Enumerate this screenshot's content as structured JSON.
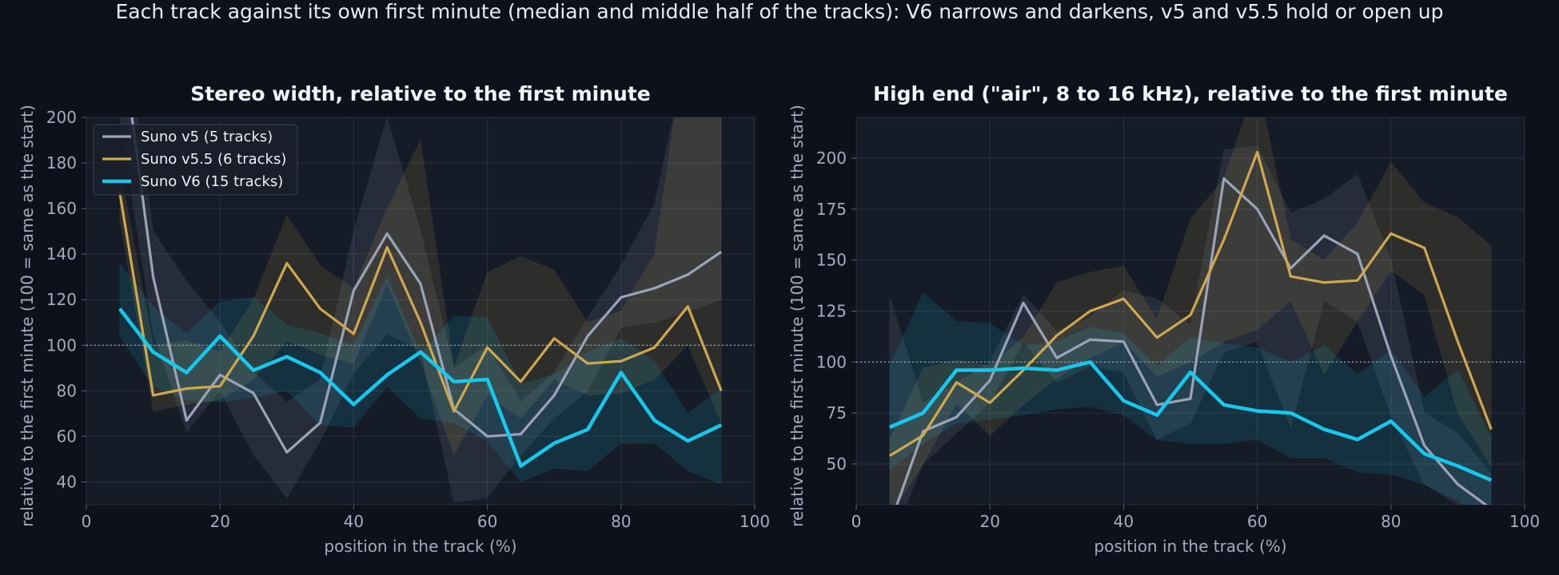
{
  "suptitle": "Each track against its own first minute (median and middle half of the tracks): V6 narrows and darkens, v5 and v5.5 hold or open up",
  "colors": {
    "background": "#0d111b",
    "panel": "#151b27",
    "grid": "#293040",
    "text": "#a4acbd",
    "v5": "#9ba3b8",
    "v55": "#cfa84e",
    "v6": "#16c8ec"
  },
  "chart_data": [
    {
      "type": "line",
      "title": "Stereo width, relative to the first minute",
      "xlabel": "position in the track (%)",
      "ylabel": "relative to the first minute (100 = same as the start)",
      "xlim": [
        0,
        100
      ],
      "ylim": [
        30,
        200
      ],
      "xticks": [
        0,
        20,
        40,
        60,
        80,
        100
      ],
      "yticks": [
        40,
        60,
        80,
        100,
        120,
        140,
        160,
        180,
        200
      ],
      "reference_line": 100,
      "grid": true,
      "legend": "top-left",
      "x": [
        5,
        10,
        15,
        20,
        25,
        30,
        35,
        40,
        45,
        50,
        55,
        60,
        65,
        70,
        75,
        80,
        85,
        90,
        95
      ],
      "series": [
        {
          "name": "Suno v5 (5 tracks)",
          "color_key": "v5",
          "median": [
            240,
            130,
            67,
            87,
            79,
            53,
            66,
            124,
            149,
            127,
            72,
            60,
            61,
            78,
            104,
            121,
            125,
            131,
            141
          ],
          "q1": [
            200,
            105,
            62,
            80,
            52,
            33,
            58,
            88,
            105,
            98,
            31,
            33,
            52,
            68,
            80,
            108,
            110,
            115,
            120
          ],
          "q3": [
            260,
            150,
            128,
            110,
            88,
            75,
            85,
            150,
            200,
            150,
            90,
            100,
            75,
            88,
            112,
            135,
            162,
            230,
            240
          ]
        },
        {
          "name": "Suno v5.5 (6 tracks)",
          "color_key": "v55",
          "median": [
            167,
            78,
            81,
            82,
            104,
            136,
            116,
            105,
            143,
            110,
            71,
            99,
            84,
            103,
            92,
            93,
            99,
            117,
            80
          ],
          "q1": [
            155,
            71,
            74,
            76,
            85,
            102,
            96,
            92,
            127,
            93,
            52,
            78,
            68,
            85,
            78,
            79,
            85,
            100,
            66
          ],
          "q3": [
            178,
            100,
            102,
            97,
            120,
            157,
            135,
            125,
            160,
            190,
            90,
            132,
            139,
            133,
            110,
            115,
            140,
            240,
            200
          ]
        },
        {
          "name": "Suno V6 (15 tracks)",
          "color_key": "v6",
          "median": [
            116,
            97,
            88,
            104,
            89,
            95,
            88,
            74,
            87,
            97,
            84,
            85,
            47,
            57,
            63,
            88,
            67,
            58,
            65
          ],
          "q1": [
            104,
            82,
            76,
            75,
            77,
            80,
            65,
            64,
            82,
            68,
            66,
            58,
            40,
            46,
            45,
            57,
            57,
            45,
            39
          ],
          "q3": [
            136,
            117,
            105,
            119,
            121,
            109,
            105,
            100,
            130,
            96,
            113,
            112,
            83,
            87,
            97,
            103,
            93,
            70,
            81
          ]
        }
      ]
    },
    {
      "type": "line",
      "title": "High end (\"air\", 8 to 16 kHz), relative to the first minute",
      "xlabel": "position in the track (%)",
      "ylabel": "relative to the first minute (100 = same as the start)",
      "xlim": [
        0,
        100
      ],
      "ylim": [
        30,
        220
      ],
      "xticks": [
        0,
        20,
        40,
        60,
        80,
        100
      ],
      "yticks": [
        50,
        75,
        100,
        125,
        150,
        175,
        200
      ],
      "reference_line": 100,
      "grid": true,
      "legend": "none",
      "x": [
        5,
        10,
        15,
        20,
        25,
        30,
        35,
        40,
        45,
        50,
        55,
        60,
        65,
        70,
        75,
        80,
        85,
        90,
        95
      ],
      "series": [
        {
          "name": "Suno v5 (5 tracks)",
          "color_key": "v5",
          "median": [
            20,
            66,
            73,
            91,
            129,
            102,
            111,
            110,
            79,
            82,
            190,
            175,
            146,
            162,
            153,
            103,
            59,
            40,
            28
          ],
          "q1": [
            10,
            50,
            65,
            80,
            110,
            90,
            98,
            95,
            62,
            70,
            105,
            110,
            68,
            130,
            120,
            74,
            40,
            30,
            20
          ],
          "q3": [
            132,
            80,
            90,
            100,
            133,
            115,
            122,
            135,
            131,
            118,
            204,
            206,
            173,
            180,
            192,
            150,
            75,
            65,
            45
          ]
        },
        {
          "name": "Suno v5.5 (6 tracks)",
          "color_key": "v55",
          "median": [
            54,
            64,
            90,
            80,
            96,
            113,
            125,
            131,
            112,
            123,
            160,
            203,
            142,
            139,
            140,
            163,
            156,
            110,
            67
          ],
          "q1": [
            24,
            50,
            80,
            64,
            79,
            92,
            102,
            110,
            93,
            100,
            110,
            116,
            130,
            94,
            120,
            145,
            133,
            75,
            49
          ],
          "q3": [
            62,
            97,
            101,
            98,
            112,
            139,
            144,
            147,
            121,
            170,
            190,
            238,
            160,
            150,
            168,
            198,
            178,
            171,
            157
          ]
        },
        {
          "name": "Suno V6 (15 tracks)",
          "color_key": "v6",
          "median": [
            68,
            75,
            96,
            96,
            97,
            96,
            100,
            81,
            74,
            95,
            79,
            76,
            75,
            67,
            62,
            71,
            55,
            49,
            42
          ],
          "q1": [
            47,
            60,
            70,
            72,
            74,
            77,
            78,
            74,
            62,
            60,
            60,
            62,
            53,
            53,
            46,
            45,
            40,
            32,
            20
          ],
          "q3": [
            98,
            134,
            120,
            119,
            108,
            110,
            117,
            114,
            98,
            112,
            109,
            107,
            100,
            108,
            94,
            106,
            83,
            96,
            63
          ]
        }
      ]
    }
  ]
}
